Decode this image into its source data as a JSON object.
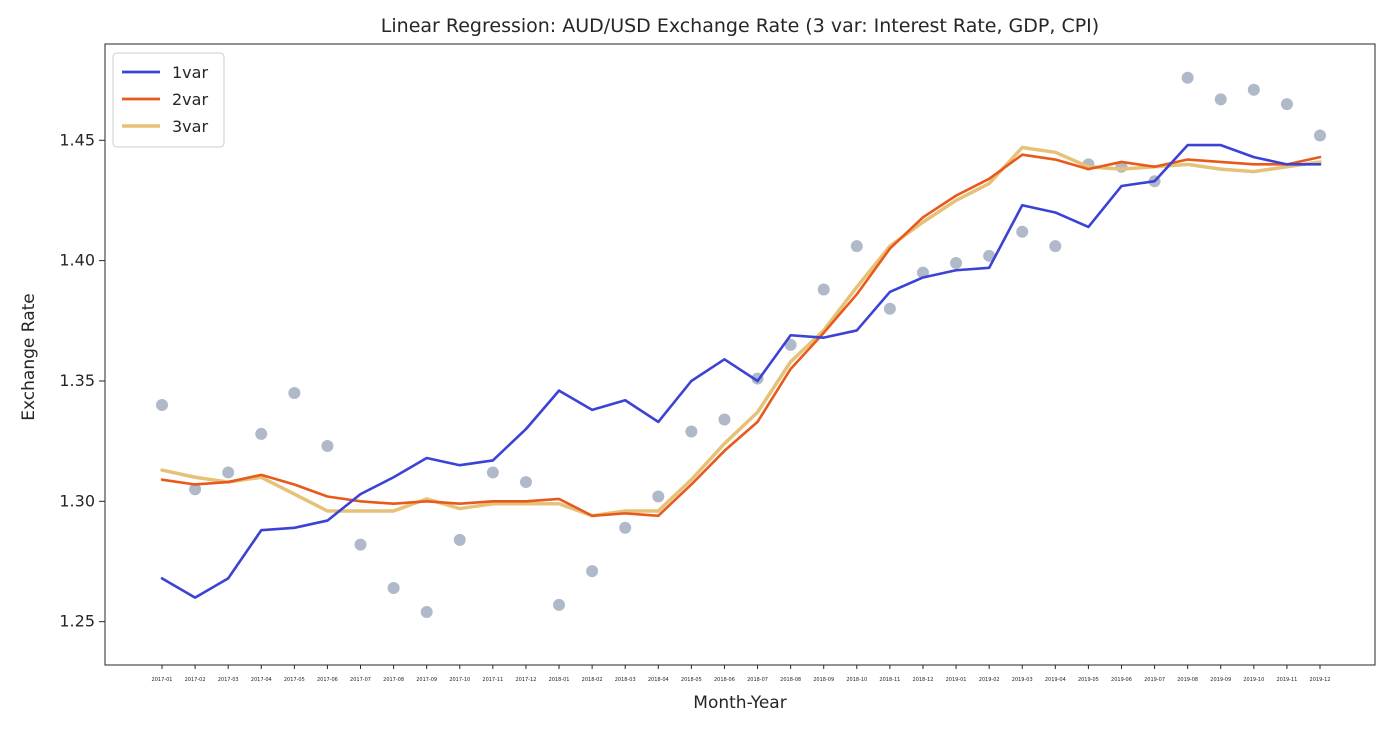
{
  "chart_data": {
    "type": "line",
    "title": "Linear Regression: AUD/USD Exchange Rate (3 var: Interest Rate, GDP, CPI)",
    "xlabel": "Month-Year",
    "ylabel": "Exchange Rate",
    "ylim": [
      1.232,
      1.49
    ],
    "yticks": [
      1.25,
      1.3,
      1.35,
      1.4,
      1.45
    ],
    "ytick_labels": [
      "1.25",
      "1.30",
      "1.35",
      "1.40",
      "1.45"
    ],
    "grid": false,
    "legend_position": "top-left",
    "categories": [
      "2017-01",
      "2017-02",
      "2017-03",
      "2017-04",
      "2017-05",
      "2017-06",
      "2017-07",
      "2017-08",
      "2017-09",
      "2017-10",
      "2017-11",
      "2017-12",
      "2018-01",
      "2018-02",
      "2018-03",
      "2018-04",
      "2018-05",
      "2018-06",
      "2018-07",
      "2018-08",
      "2018-09",
      "2018-10",
      "2018-11",
      "2018-12",
      "2019-01",
      "2019-02",
      "2019-03",
      "2019-04",
      "2019-05",
      "2019-06",
      "2019-07",
      "2019-08",
      "2019-09",
      "2019-10",
      "2019-11",
      "2019-12"
    ],
    "actual": {
      "color": "#b0b9c9",
      "values": [
        1.34,
        1.305,
        1.312,
        1.328,
        1.345,
        1.323,
        1.282,
        1.264,
        1.254,
        1.284,
        1.312,
        1.308,
        1.257,
        1.271,
        1.289,
        1.302,
        1.329,
        1.334,
        1.351,
        1.365,
        1.388,
        1.406,
        1.38,
        1.395,
        1.399,
        1.402,
        1.412,
        1.406,
        1.44,
        1.439,
        1.433,
        1.476,
        1.467,
        1.471,
        1.465,
        1.452
      ]
    },
    "series": [
      {
        "name": "1var",
        "color": "#3b42d6",
        "values": [
          1.268,
          1.26,
          1.268,
          1.288,
          1.289,
          1.292,
          1.303,
          1.31,
          1.318,
          1.315,
          1.317,
          1.33,
          1.346,
          1.338,
          1.342,
          1.333,
          1.35,
          1.359,
          1.35,
          1.369,
          1.368,
          1.371,
          1.387,
          1.393,
          1.396,
          1.397,
          1.423,
          1.42,
          1.414,
          1.431,
          1.433,
          1.448,
          1.448,
          1.443,
          1.44,
          1.44
        ]
      },
      {
        "name": "2var",
        "color": "#e8591c",
        "values": [
          1.309,
          1.307,
          1.308,
          1.311,
          1.307,
          1.302,
          1.3,
          1.299,
          1.3,
          1.299,
          1.3,
          1.3,
          1.301,
          1.294,
          1.295,
          1.294,
          1.307,
          1.321,
          1.333,
          1.355,
          1.37,
          1.386,
          1.405,
          1.418,
          1.427,
          1.434,
          1.444,
          1.442,
          1.438,
          1.441,
          1.439,
          1.442,
          1.441,
          1.44,
          1.44,
          1.443
        ]
      },
      {
        "name": "3var",
        "color": "#e6c178",
        "values": [
          1.313,
          1.31,
          1.308,
          1.31,
          1.303,
          1.296,
          1.296,
          1.296,
          1.301,
          1.297,
          1.299,
          1.299,
          1.299,
          1.294,
          1.296,
          1.296,
          1.309,
          1.324,
          1.337,
          1.358,
          1.371,
          1.389,
          1.406,
          1.416,
          1.425,
          1.432,
          1.447,
          1.445,
          1.439,
          1.438,
          1.439,
          1.44,
          1.438,
          1.437,
          1.439,
          1.441
        ]
      }
    ]
  }
}
